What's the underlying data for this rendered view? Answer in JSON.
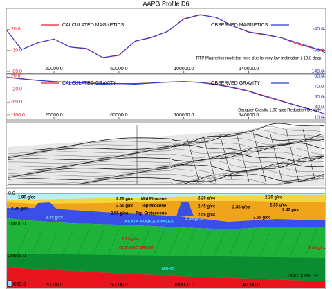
{
  "header": {
    "title": "AAPG Profile D6"
  },
  "chart_data": [
    {
      "type": "line",
      "x": [
        -9000,
        0,
        10000,
        20000,
        30000,
        40000,
        50000,
        60000,
        70000,
        80000,
        90000,
        100000,
        110000,
        120000,
        130000,
        140000,
        150000,
        160000,
        170000,
        180000,
        187000
      ],
      "xlim": [
        -9000,
        187000
      ],
      "xticks": [
        {
          "value": 20000,
          "label": "20000.0"
        },
        {
          "value": 60000,
          "label": "60000.0"
        },
        {
          "value": 100000,
          "label": "100000.0"
        },
        {
          "value": 140000,
          "label": "140000.0"
        }
      ],
      "ylim": [
        -83,
        68
      ],
      "yticks": [
        {
          "value": 20,
          "label": "20.0"
        },
        {
          "value": -30,
          "label": "-30.0"
        },
        {
          "value": -80,
          "label": "-80.0"
        }
      ],
      "y2lim": [
        -143,
        8
      ],
      "y2ticks": [
        {
          "value": -40,
          "label": "-40.0"
        },
        {
          "value": -90,
          "label": "-90.0"
        },
        {
          "value": -140,
          "label": "-140.0"
        }
      ],
      "series": [
        {
          "name": "CALCULATED MAGNETICS",
          "color": "#e8222a",
          "values": [
            17,
            -28,
            -12,
            -3,
            -22,
            -25,
            -47,
            -42,
            -8,
            0,
            15,
            45,
            55,
            48,
            28,
            13,
            7,
            0,
            -15,
            -25,
            -30
          ]
        },
        {
          "name": "OBSERVED MAGNETICS",
          "color": "#2a3ad8",
          "axis": "y2",
          "values": [
            -43,
            -88,
            -72,
            -63,
            -82,
            -86,
            -107,
            -101,
            -68,
            -59,
            -45,
            -16,
            -6,
            -12,
            -32,
            -46,
            -52,
            -60,
            -72,
            -84,
            -95
          ]
        }
      ],
      "annotation": "RTP Magnetics modeled here due to very low inclination (-19.8 deg)"
    },
    {
      "type": "line",
      "x": [
        -9000,
        0,
        10000,
        20000,
        30000,
        40000,
        50000,
        60000,
        70000,
        80000,
        90000,
        100000,
        110000,
        120000,
        130000,
        140000,
        150000,
        160000,
        170000,
        180000,
        187000
      ],
      "xlim": [
        -9000,
        187000
      ],
      "xticks": [
        {
          "value": 20000,
          "label": "20000.0"
        },
        {
          "value": 60000,
          "label": "60000.0"
        },
        {
          "value": 100000,
          "label": "100000.0"
        },
        {
          "value": 140000,
          "label": "140000.0"
        }
      ],
      "ylim": [
        -113,
        24
      ],
      "yticks": [
        {
          "value": 20,
          "label": "20.0"
        },
        {
          "value": -20,
          "label": "-20.0"
        },
        {
          "value": -60,
          "label": "-60.0"
        },
        {
          "value": -100,
          "label": "-100.0"
        }
      ],
      "y2lim": [
        7,
        93
      ],
      "y2ticks": [
        {
          "value": 90,
          "label": "90.0"
        },
        {
          "value": 70,
          "label": "70.0"
        },
        {
          "value": 50,
          "label": "50.0"
        },
        {
          "value": 30,
          "label": "30.0"
        },
        {
          "value": 10,
          "label": "10.0"
        }
      ],
      "series": [
        {
          "name": "CALCULATED GRAVITY",
          "color": "#e8222a",
          "values": [
            16,
            12,
            7,
            3,
            1,
            -1,
            -3,
            -3,
            -3,
            -1,
            1,
            3,
            1,
            -5,
            -14,
            -26,
            -41,
            -56,
            -71,
            -85,
            -98
          ]
        },
        {
          "name": "OBSERVED GRAVITY",
          "color": "#2a3ad8",
          "axis": "y2",
          "values": [
            88,
            85,
            82,
            80,
            78,
            77,
            75,
            76,
            75,
            77,
            79,
            80,
            78,
            74,
            68,
            61,
            51,
            42,
            33,
            24,
            17
          ]
        }
      ],
      "annotation": "Bouguer Gravity 1.90 g/cc Reduction Density"
    }
  ],
  "model": {
    "depth_labels": [
      "0.0",
      "10000.0",
      "20000.0",
      "30000.0"
    ],
    "distance_labels": [
      "20000.0",
      "60000.0",
      "100000.0",
      "140000.0"
    ],
    "labels": [
      "1.90 g/cc",
      "2.25 g/cc",
      "Mid Pliocene",
      "2.20 g/cc",
      "2.20 g/cc",
      "2.50 g/cc",
      "Top Miocene",
      "2.45 g/cc",
      "2.35 g/cc",
      "2.35 g/cc",
      "2.35 g/cc",
      "2.55 g/cc",
      "Top Cretaceous",
      "2.55 g/cc",
      "2.40 g/cc",
      "2.55 g/cc",
      "2.35 g/cc",
      "2.36 g/cc",
      "AKATA MOBILE SHALES",
      "2.75 g/cc",
      "OCEANIC CRUST",
      "2.45 g/cc",
      "MOHO"
    ],
    "unit": "UNIT = METR"
  }
}
